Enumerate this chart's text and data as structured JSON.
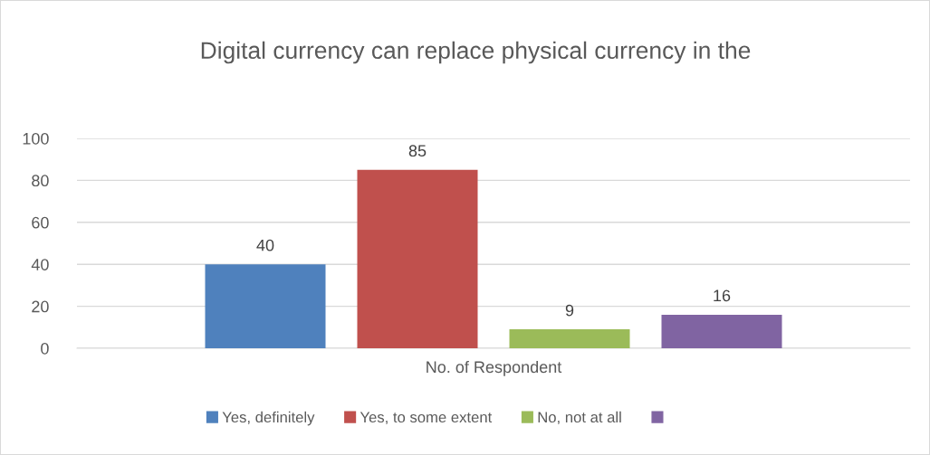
{
  "chart_data": {
    "type": "bar",
    "title": "Digital currency can replace physical currency in the",
    "categories": [
      "No. of Respondent"
    ],
    "series": [
      {
        "name": "Yes, definitely",
        "color": "#4f81bd",
        "values": [
          40
        ]
      },
      {
        "name": "Yes, to some extent",
        "color": "#c0504d",
        "values": [
          85
        ]
      },
      {
        "name": "No, not at all",
        "color": "#9bbb59",
        "values": [
          9
        ]
      },
      {
        "color": "#8064a2",
        "values": [
          16
        ]
      }
    ],
    "ylim": [
      0,
      100
    ],
    "yticks": [
      0,
      20,
      40,
      60,
      80,
      100
    ],
    "grid": "y",
    "legend": "bottom",
    "data_labels": true
  }
}
